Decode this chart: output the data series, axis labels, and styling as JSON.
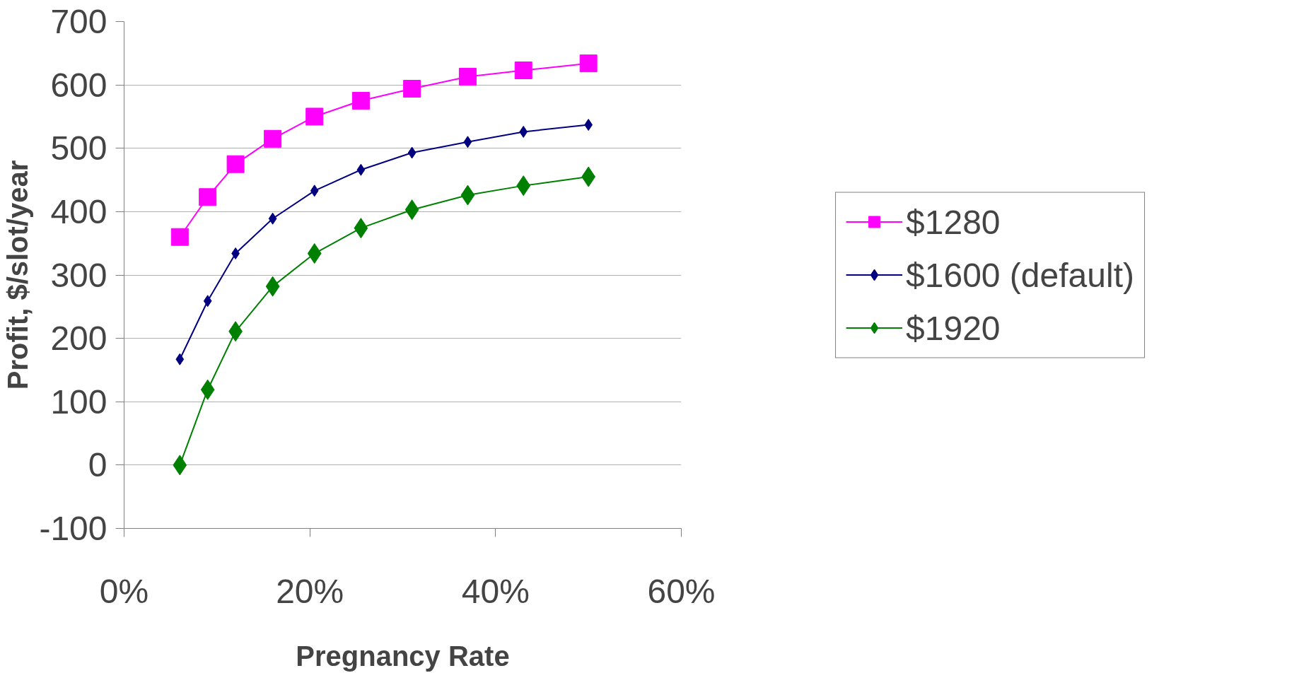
{
  "chart_data": {
    "type": "line",
    "xlabel": "Pregnancy Rate",
    "ylabel": "Profit, $/slot/year",
    "x": [
      0.06,
      0.09,
      0.12,
      0.16,
      0.205,
      0.255,
      0.31,
      0.37,
      0.43,
      0.5
    ],
    "series": [
      {
        "name": "$1280",
        "color": "#ff00ff",
        "marker": "square",
        "values": [
          360,
          423,
          475,
          515,
          550,
          575,
          594,
          613,
          623,
          634
        ]
      },
      {
        "name": "$1600 (default)",
        "color": "#000080",
        "marker": "diamond",
        "values": [
          167,
          259,
          334,
          389,
          433,
          466,
          493,
          510,
          526,
          537
        ]
      },
      {
        "name": "$1920",
        "color": "#008000",
        "marker": "diamond",
        "values": [
          0,
          119,
          211,
          282,
          334,
          374,
          403,
          426,
          441,
          455
        ]
      }
    ],
    "xlim": [
      0,
      0.6
    ],
    "xticks": [
      {
        "value": 0,
        "label": "0%"
      },
      {
        "value": 0.2,
        "label": "20%"
      },
      {
        "value": 0.4,
        "label": "40%"
      },
      {
        "value": 0.6,
        "label": "60%"
      }
    ],
    "ylim": [
      -100,
      700
    ],
    "yticks": [
      -100,
      0,
      100,
      200,
      300,
      400,
      500,
      600,
      700
    ],
    "grid": "y",
    "legend": "right",
    "line_style": "solid"
  }
}
